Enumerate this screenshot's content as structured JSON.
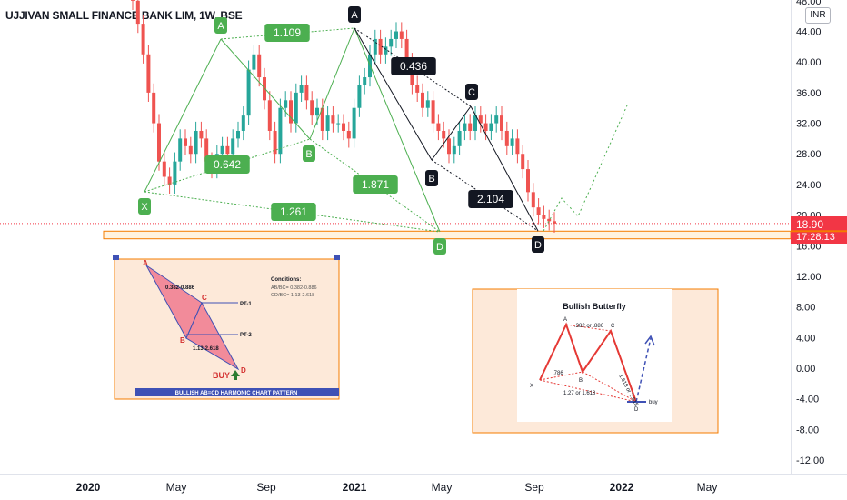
{
  "header": {
    "title": "UJJIVAN SMALL FINANCE BANK LIM, 1W, BSE",
    "currency": "INR"
  },
  "price_axis": {
    "ticks": [
      "48.00",
      "44.00",
      "40.00",
      "36.00",
      "32.00",
      "28.00",
      "24.00",
      "20.00",
      "16.00",
      "12.00",
      "8.00",
      "4.00",
      "0.00",
      "-4.00",
      "-8.00",
      "-12.00"
    ],
    "last_price": "18.90",
    "countdown": "17:28:13",
    "last_price_color": "#f23645"
  },
  "time_axis": {
    "labels": [
      {
        "text": "2020",
        "bold": true
      },
      {
        "text": "May",
        "bold": false
      },
      {
        "text": "Sep",
        "bold": false
      },
      {
        "text": "2021",
        "bold": true
      },
      {
        "text": "May",
        "bold": false
      },
      {
        "text": "Sep",
        "bold": false
      },
      {
        "text": "2022",
        "bold": true
      },
      {
        "text": "May",
        "bold": false
      }
    ]
  },
  "chart_data": {
    "type": "candlestick",
    "symbol": "UJJIVAN SMALL FINANCE BANK LIM",
    "interval": "1W",
    "exchange": "BSE",
    "ylim": [
      -14,
      49
    ],
    "up_color": "#26a69a",
    "down_color": "#ef5350",
    "closes": [
      48,
      45,
      41,
      36,
      32,
      27,
      25,
      24,
      27,
      30,
      29,
      28,
      31,
      30,
      27,
      26,
      28,
      29,
      28,
      30,
      31,
      33,
      39,
      41,
      38,
      35,
      31,
      28,
      34,
      35,
      32,
      36,
      37,
      35,
      33,
      34,
      31,
      33,
      32,
      32,
      31,
      30,
      34,
      37,
      38,
      41,
      43,
      41,
      42,
      43,
      44,
      43,
      40,
      37,
      36,
      34,
      35,
      32,
      31,
      30,
      28,
      29,
      31,
      32,
      31,
      33,
      32,
      31,
      32,
      33,
      31,
      29,
      30,
      28,
      26,
      23,
      21,
      20,
      19.5,
      19.2,
      18.9
    ],
    "current_price": 18.9,
    "pattern": {
      "name": "Bullish Butterfly",
      "points": [
        {
          "label": "X",
          "price": 23
        },
        {
          "label": "A",
          "price": 44.5
        },
        {
          "label": "B",
          "price": 30
        },
        {
          "label": "A",
          "price": 44.5
        },
        {
          "label": "B",
          "price": 27
        },
        {
          "label": "C",
          "price": 34.5
        },
        {
          "label": "D",
          "price": 18
        }
      ],
      "ratios": [
        "1.109",
        "0.642",
        "1.871",
        "1.261",
        "0.436",
        "2.104"
      ]
    }
  },
  "legend_ab_cd": {
    "conditions_title": "Conditions:",
    "condition_1": "AB/BC= 0.382-0.886",
    "condition_2": "CD/BC= 1.13-2.618",
    "ratio_top": "0.382-0.886",
    "ratio_bottom": "1.13-2.618",
    "pt1": "PT-1",
    "pt2": "PT-2",
    "buy": "BUY",
    "banner": "BULLISH AB=CD HARMONIC CHART PATTERN",
    "labels": [
      "A",
      "B",
      "C",
      "D"
    ]
  },
  "legend_butterfly": {
    "title": "Bullish Butterfly",
    "ratio_ab": ".382 or .886",
    "ratio_xb": ".786",
    "ratio_cd": "1.618 or 2.618",
    "ratio_xd": "1.27 or 1.618",
    "buy": "buy",
    "labels": [
      "X",
      "A",
      "B",
      "C",
      "D"
    ]
  }
}
